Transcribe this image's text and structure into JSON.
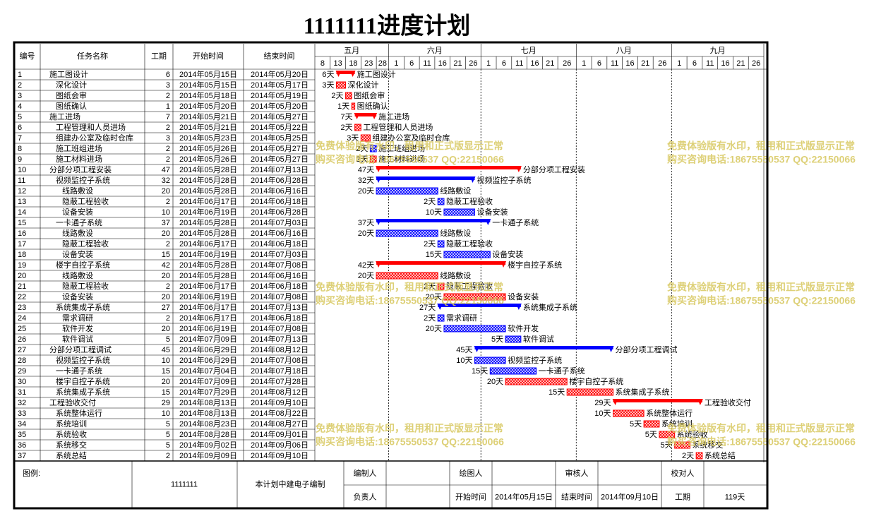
{
  "chart_data": {
    "type": "gantt",
    "title": "1111111进度计划",
    "columns": [
      "编号",
      "任务名称",
      "工期",
      "开始时间",
      "结束时间"
    ],
    "months": [
      {
        "name": "五月",
        "days": [
          8,
          13,
          18,
          23,
          28
        ]
      },
      {
        "name": "六月",
        "days": [
          1,
          6,
          11,
          16,
          21,
          26
        ]
      },
      {
        "name": "七月",
        "days": [
          1,
          6,
          11,
          16,
          21,
          26
        ]
      },
      {
        "name": "八月",
        "days": [
          1,
          6,
          11,
          16,
          21,
          26
        ]
      },
      {
        "name": "九月",
        "days": [
          1,
          6,
          11,
          16,
          21,
          26
        ]
      }
    ],
    "tasks": [
      {
        "id": 1,
        "name": "施工图设计",
        "level": 0,
        "duration": 6,
        "duration_label": "6天",
        "start": "2014年05月15日",
        "end": "2014年05月20日",
        "color": "#ff0000",
        "summary": true
      },
      {
        "id": 2,
        "name": "深化设计",
        "level": 1,
        "duration": 3,
        "duration_label": "3天",
        "start": "2014年05月15日",
        "end": "2014年05月17日",
        "color": "#ff0000",
        "summary": false
      },
      {
        "id": 3,
        "name": "图纸会审",
        "level": 1,
        "duration": 2,
        "duration_label": "2天",
        "start": "2014年05月18日",
        "end": "2014年05月19日",
        "color": "#ff0000",
        "summary": false
      },
      {
        "id": 4,
        "name": "图纸确认",
        "level": 1,
        "duration": 1,
        "duration_label": "1天",
        "start": "2014年05月20日",
        "end": "2014年05月20日",
        "color": "#ff0000",
        "summary": false
      },
      {
        "id": 5,
        "name": "施工进场",
        "level": 0,
        "duration": 7,
        "duration_label": "7天",
        "start": "2014年05月21日",
        "end": "2014年05月27日",
        "color": "#ff0000",
        "summary": true
      },
      {
        "id": 6,
        "name": "工程管理和人员进场",
        "level": 1,
        "duration": 2,
        "duration_label": "2天",
        "start": "2014年05月21日",
        "end": "2014年05月22日",
        "color": "#ff0000",
        "summary": false
      },
      {
        "id": 7,
        "name": "组建办公室及临时仓库",
        "level": 1,
        "duration": 3,
        "duration_label": "3天",
        "start": "2014年05月23日",
        "end": "2014年05月25日",
        "color": "#ff0000",
        "summary": false
      },
      {
        "id": 8,
        "name": "施工班组进场",
        "level": 1,
        "duration": 2,
        "duration_label": "2天",
        "start": "2014年05月26日",
        "end": "2014年05月27日",
        "color": "#0000ff",
        "summary": false
      },
      {
        "id": 9,
        "name": "施工材料进场",
        "level": 1,
        "duration": 2,
        "duration_label": "2天",
        "start": "2014年05月26日",
        "end": "2014年05月27日",
        "color": "#ff0000",
        "summary": false
      },
      {
        "id": 10,
        "name": "分部分项工程安装",
        "level": 0,
        "duration": 47,
        "duration_label": "47天",
        "start": "2014年05月28日",
        "end": "2014年07月13日",
        "color": "#ff0000",
        "summary": true
      },
      {
        "id": 11,
        "name": "视频监控子系统",
        "level": 1,
        "duration": 32,
        "duration_label": "32天",
        "start": "2014年05月28日",
        "end": "2014年06月28日",
        "color": "#0000ff",
        "summary": true
      },
      {
        "id": 12,
        "name": "线路敷设",
        "level": 2,
        "duration": 20,
        "duration_label": "20天",
        "start": "2014年05月28日",
        "end": "2014年06月16日",
        "color": "#0000ff",
        "summary": false
      },
      {
        "id": 13,
        "name": "隐蔽工程验收",
        "level": 2,
        "duration": 2,
        "duration_label": "2天",
        "start": "2014年06月17日",
        "end": "2014年06月18日",
        "color": "#0000ff",
        "summary": false
      },
      {
        "id": 14,
        "name": "设备安装",
        "level": 2,
        "duration": 10,
        "duration_label": "10天",
        "start": "2014年06月19日",
        "end": "2014年06月28日",
        "color": "#0000ff",
        "summary": false
      },
      {
        "id": 15,
        "name": "一卡通子系统",
        "level": 1,
        "duration": 37,
        "duration_label": "37天",
        "start": "2014年05月28日",
        "end": "2014年07月03日",
        "color": "#0000ff",
        "summary": true
      },
      {
        "id": 16,
        "name": "线路敷设",
        "level": 2,
        "duration": 20,
        "duration_label": "20天",
        "start": "2014年05月28日",
        "end": "2014年06月16日",
        "color": "#0000ff",
        "summary": false
      },
      {
        "id": 17,
        "name": "隐蔽工程验收",
        "level": 2,
        "duration": 2,
        "duration_label": "2天",
        "start": "2014年06月17日",
        "end": "2014年06月18日",
        "color": "#0000ff",
        "summary": false
      },
      {
        "id": 18,
        "name": "设备安装",
        "level": 2,
        "duration": 15,
        "duration_label": "15天",
        "start": "2014年06月19日",
        "end": "2014年07月03日",
        "color": "#0000ff",
        "summary": false
      },
      {
        "id": 19,
        "name": "楼宇自控子系统",
        "level": 1,
        "duration": 42,
        "duration_label": "42天",
        "start": "2014年05月28日",
        "end": "2014年07月08日",
        "color": "#ff0000",
        "summary": true
      },
      {
        "id": 20,
        "name": "线路敷设",
        "level": 2,
        "duration": 20,
        "duration_label": "20天",
        "start": "2014年05月28日",
        "end": "2014年06月16日",
        "color": "#ff0000",
        "summary": false
      },
      {
        "id": 21,
        "name": "隐蔽工程验收",
        "level": 2,
        "duration": 2,
        "duration_label": "2天",
        "start": "2014年06月17日",
        "end": "2014年06月18日",
        "color": "#ff0000",
        "summary": false
      },
      {
        "id": 22,
        "name": "设备安装",
        "level": 2,
        "duration": 20,
        "duration_label": "20天",
        "start": "2014年06月19日",
        "end": "2014年07月08日",
        "color": "#ff0000",
        "summary": false
      },
      {
        "id": 23,
        "name": "系统集成子系统",
        "level": 1,
        "duration": 27,
        "duration_label": "27天",
        "start": "2014年06月17日",
        "end": "2014年07月13日",
        "color": "#0000ff",
        "summary": true
      },
      {
        "id": 24,
        "name": "需求调研",
        "level": 2,
        "duration": 2,
        "duration_label": "2天",
        "start": "2014年06月17日",
        "end": "2014年06月18日",
        "color": "#0000ff",
        "summary": false
      },
      {
        "id": 25,
        "name": "软件开发",
        "level": 2,
        "duration": 20,
        "duration_label": "20天",
        "start": "2014年06月19日",
        "end": "2014年07月08日",
        "color": "#0000ff",
        "summary": false
      },
      {
        "id": 26,
        "name": "软件调试",
        "level": 2,
        "duration": 5,
        "duration_label": "5天",
        "start": "2014年07月09日",
        "end": "2014年07月13日",
        "color": "#0000ff",
        "summary": false
      },
      {
        "id": 27,
        "name": "分部分项工程调试",
        "level": 0,
        "duration": 45,
        "duration_label": "45天",
        "start": "2014年06月29日",
        "end": "2014年08月12日",
        "color": "#0000ff",
        "summary": true
      },
      {
        "id": 28,
        "name": "视频监控子系统",
        "level": 1,
        "duration": 10,
        "duration_label": "10天",
        "start": "2014年06月29日",
        "end": "2014年07月08日",
        "color": "#0000ff",
        "summary": false
      },
      {
        "id": 29,
        "name": "一卡通子系统",
        "level": 1,
        "duration": 15,
        "duration_label": "15天",
        "start": "2014年07月04日",
        "end": "2014年07月18日",
        "color": "#0000ff",
        "summary": false
      },
      {
        "id": 30,
        "name": "楼宇自控子系统",
        "level": 1,
        "duration": 20,
        "duration_label": "20天",
        "start": "2014年07月09日",
        "end": "2014年07月28日",
        "color": "#ff0000",
        "summary": false
      },
      {
        "id": 31,
        "name": "系统集成子系统",
        "level": 1,
        "duration": 15,
        "duration_label": "15天",
        "start": "2014年07月29日",
        "end": "2014年08月12日",
        "color": "#ff0000",
        "summary": false
      },
      {
        "id": 32,
        "name": "工程验收交付",
        "level": 0,
        "duration": 29,
        "duration_label": "29天",
        "start": "2014年08月13日",
        "end": "2014年09月10日",
        "color": "#ff0000",
        "summary": true
      },
      {
        "id": 33,
        "name": "系统整体运行",
        "level": 1,
        "duration": 10,
        "duration_label": "10天",
        "start": "2014年08月13日",
        "end": "2014年08月22日",
        "color": "#ff0000",
        "summary": false
      },
      {
        "id": 34,
        "name": "系统培训",
        "level": 1,
        "duration": 5,
        "duration_label": "5天",
        "start": "2014年08月23日",
        "end": "2014年08月27日",
        "color": "#ff0000",
        "summary": false
      },
      {
        "id": 35,
        "name": "系统验收",
        "level": 1,
        "duration": 5,
        "duration_label": "5天",
        "start": "2014年08月28日",
        "end": "2014年09月01日",
        "color": "#ff0000",
        "summary": false
      },
      {
        "id": 36,
        "name": "系统移交",
        "level": 1,
        "duration": 5,
        "duration_label": "5天",
        "start": "2014年09月02日",
        "end": "2014年09月06日",
        "color": "#ff0000",
        "summary": false
      },
      {
        "id": 37,
        "name": "系统总结",
        "level": 1,
        "duration": 2,
        "duration_label": "2天",
        "start": "2014年09月09日",
        "end": "2014年09月10日",
        "color": "#ff0000",
        "summary": false
      }
    ]
  },
  "watermark": [
    "免费体验版有水印，租用和正式版显示正常",
    "购买咨询电话:18675550537 QQ:22150066"
  ],
  "footer": {
    "legend_label": "图例:",
    "project": "1111111",
    "note": "本计划中建电子编制",
    "prepared_by": "编制人",
    "drawn_by": "绘图人",
    "reviewed_by": "审核人",
    "checked_by": "校对人",
    "responsible": "负责人",
    "start_label": "开始时间",
    "start": "2014年05月15日",
    "end_label": "结束时间",
    "end": "2014年09月10日",
    "duration_label": "工期",
    "duration": "119天"
  }
}
